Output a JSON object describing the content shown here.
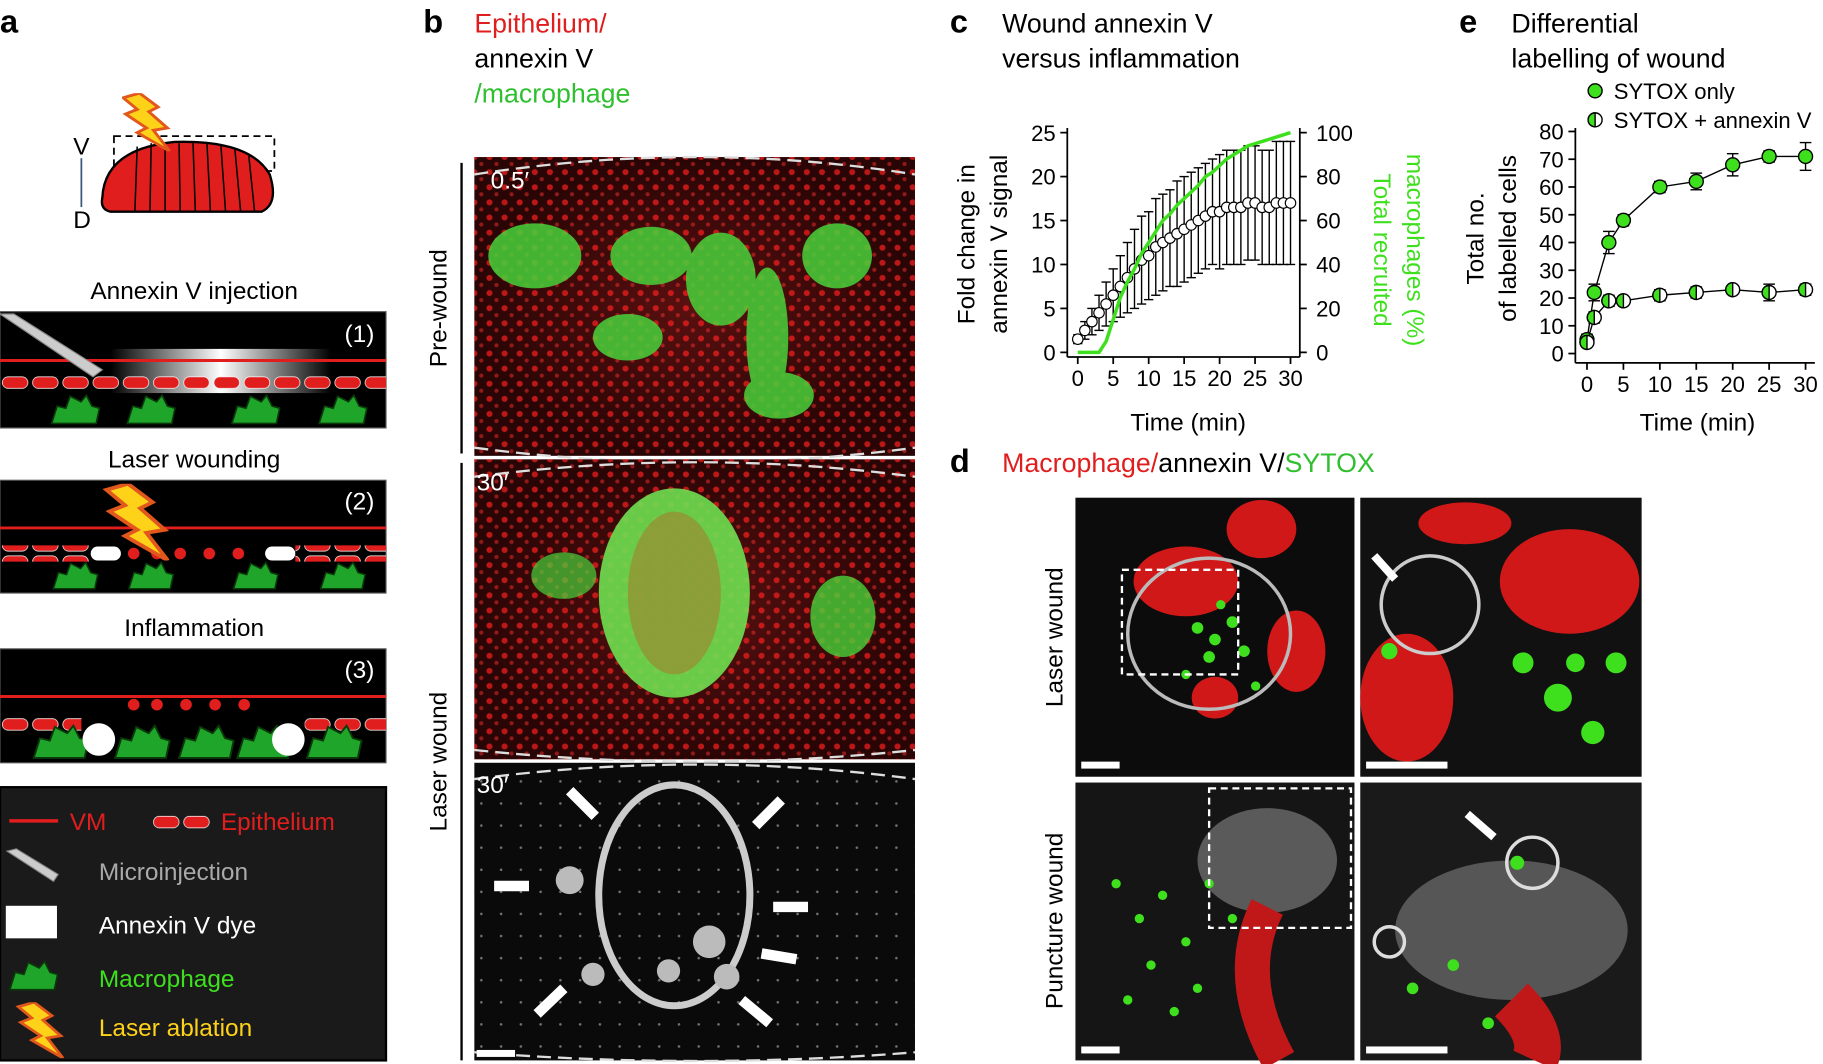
{
  "panel_letters": [
    "a",
    "b",
    "c",
    "d",
    "e"
  ],
  "panel_a": {
    "axis_top": "V",
    "axis_bottom": "D",
    "steps": [
      {
        "title": "Annexin V injection",
        "number": "(1)"
      },
      {
        "title": "Laser wounding",
        "number": "(2)"
      },
      {
        "title": "Inflammation",
        "number": "(3)"
      }
    ],
    "legend": [
      "VM",
      "Epithelium",
      "Microinjection",
      "Annexin V dye",
      "Macrophage",
      "Laser ablation"
    ]
  },
  "panel_b": {
    "title": [
      "Epithelium/",
      "annexin V",
      "/macrophage"
    ],
    "times": [
      "0.5′",
      "30′",
      "30′"
    ],
    "rows": [
      "Pre-wound",
      "Laser wound"
    ]
  },
  "panel_d": {
    "title": [
      "Macrophage/",
      "annexin V/",
      "SYTOX"
    ],
    "rows": [
      "Laser wound",
      "Puncture wound"
    ]
  },
  "chart_data": [
    {
      "type": "line",
      "title": [
        "Wound annexin V",
        "versus inflammation"
      ],
      "x_label": "Time (min)",
      "y_label": [
        "Fold change in",
        "annexin V signal"
      ],
      "y2_label": [
        "Total recruited",
        "macrophages (%)"
      ],
      "x": [
        0,
        1,
        2,
        3,
        4,
        5,
        6,
        7,
        8,
        9,
        10,
        11,
        12,
        13,
        14,
        15,
        16,
        17,
        18,
        19,
        20,
        21,
        22,
        23,
        24,
        25,
        26,
        27,
        28,
        29,
        30
      ],
      "xlim": [
        0,
        30
      ],
      "xticks": [
        0,
        5,
        10,
        15,
        20,
        25,
        30
      ],
      "ylim": [
        0,
        25
      ],
      "yticks": [
        0,
        5,
        10,
        15,
        20,
        25
      ],
      "y2lim": [
        0,
        100
      ],
      "y2ticks": [
        0,
        20,
        40,
        60,
        80,
        100
      ],
      "grid": false,
      "series": [
        {
          "color": "#ffffff",
          "values": [
            1.5,
            2.5,
            3.5,
            4.5,
            5.5,
            6.5,
            7.5,
            8.5,
            9.5,
            10.5,
            11,
            12,
            12.5,
            13,
            13.5,
            14,
            14.5,
            15,
            15.5,
            16,
            16,
            16.5,
            16.5,
            16.5,
            17,
            17,
            16.5,
            16.5,
            17,
            17,
            17
          ],
          "errors": [
            0.5,
            1,
            1.5,
            2,
            2.5,
            3,
            3.5,
            4,
            4.5,
            5,
            5,
            5.5,
            5.5,
            5.5,
            6,
            6,
            6,
            6,
            6,
            6,
            6.5,
            6.5,
            6.5,
            6.5,
            6.5,
            6.5,
            6.5,
            6.5,
            7,
            7,
            7
          ]
        },
        {
          "color": "#3ee01e",
          "axis": "y2",
          "values": [
            0,
            0,
            0,
            0,
            5,
            15,
            25,
            32,
            38,
            45,
            50,
            55,
            60,
            63,
            67,
            70,
            73,
            76,
            80,
            82,
            85,
            88,
            90,
            92,
            94,
            95,
            96,
            97,
            98,
            99,
            100
          ]
        }
      ]
    },
    {
      "type": "scatter",
      "title": [
        "Differential",
        "labelling of wound"
      ],
      "x_label": "Time (min)",
      "y_label": [
        "Total no.",
        "of labelled cells"
      ],
      "x": [
        0,
        1,
        3,
        5,
        10,
        15,
        20,
        25,
        30
      ],
      "xlim": [
        0,
        30
      ],
      "xticks": [
        0,
        5,
        10,
        15,
        20,
        25,
        30
      ],
      "ylim": [
        0,
        80
      ],
      "yticks": [
        0,
        10,
        20,
        30,
        40,
        50,
        60,
        70,
        80
      ],
      "grid": false,
      "legend": "top",
      "series": [
        {
          "name": "SYTOX only",
          "color": "#3ee01e",
          "marker": "filled",
          "values": [
            5,
            22,
            40,
            48,
            60,
            62,
            68,
            71,
            71
          ],
          "errors": [
            2,
            3,
            4,
            2,
            2,
            3,
            4,
            2,
            5
          ]
        },
        {
          "name": "SYTOX + annexin V",
          "color": "#3ee01e",
          "marker": "half",
          "values": [
            4,
            13,
            19,
            19,
            21,
            22,
            23,
            22,
            23
          ],
          "errors": [
            1,
            2,
            2,
            1,
            2,
            2,
            1,
            3,
            2
          ]
        }
      ]
    }
  ]
}
